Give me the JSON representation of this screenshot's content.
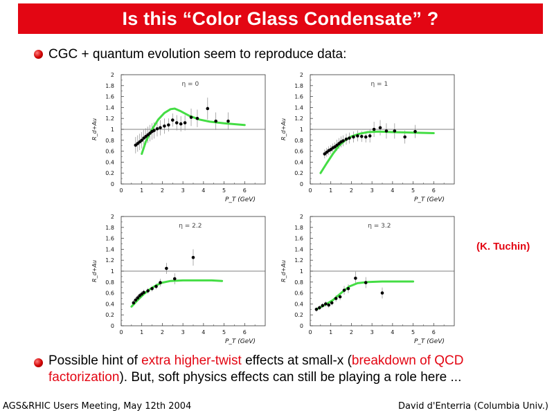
{
  "slide": {
    "title": "Is this “Color Glass Condensate” ?",
    "bullet1": "CGC + quantum evolution seem to reproduce data:",
    "bullet2_parts": [
      "Possible hint of ",
      "extra higher-twist",
      " effects at small-x (",
      "breakdown of QCD factorization",
      "). But, soft physics effects can still be playing a role here ..."
    ],
    "citation": "(K. Tuchin)",
    "footer_left": "AGS&RHIC Users Meeting, May 12th 2004",
    "footer_right": "David d'Enterria (Columbia Univ.)",
    "colors": {
      "title_bg": "#e30613",
      "highlight": "#e30613",
      "theory_curve": "#44dd44"
    }
  },
  "chart_data": [
    {
      "type": "scatter",
      "title": "η = 0",
      "xlabel": "P_T (GeV)",
      "ylabel": "R_d+Au",
      "xlim": [
        0,
        7
      ],
      "ylim": [
        0,
        2
      ],
      "xticks": [
        0,
        1,
        2,
        3,
        4,
        5,
        6
      ],
      "yticks": [
        0,
        0.2,
        0.4,
        0.6,
        0.8,
        1,
        1.2,
        1.4,
        1.6,
        1.8,
        2
      ],
      "reference_line": 1,
      "points": [
        [
          0.7,
          0.71
        ],
        [
          0.8,
          0.74
        ],
        [
          0.9,
          0.77
        ],
        [
          1.0,
          0.8
        ],
        [
          1.1,
          0.84
        ],
        [
          1.2,
          0.87
        ],
        [
          1.3,
          0.9
        ],
        [
          1.4,
          0.93
        ],
        [
          1.5,
          0.96
        ],
        [
          1.6,
          0.98
        ],
        [
          1.75,
          1.01
        ],
        [
          1.9,
          1.03
        ],
        [
          2.1,
          1.06
        ],
        [
          2.3,
          1.08
        ],
        [
          2.5,
          1.17
        ],
        [
          2.7,
          1.12
        ],
        [
          2.9,
          1.1
        ],
        [
          3.1,
          1.12
        ],
        [
          3.4,
          1.22
        ],
        [
          3.7,
          1.2
        ],
        [
          4.2,
          1.38
        ],
        [
          4.6,
          1.15
        ],
        [
          5.2,
          1.15
        ]
      ],
      "errors": [
        0.15,
        0.15,
        0.15,
        0.15,
        0.15,
        0.15,
        0.15,
        0.15,
        0.15,
        0.15,
        0.14,
        0.14,
        0.14,
        0.12,
        0.12,
        0.14,
        0.14,
        0.14,
        0.16,
        0.16,
        0.2,
        0.16,
        0.16
      ],
      "theory_curve": [
        [
          1.0,
          0.55
        ],
        [
          1.2,
          0.78
        ],
        [
          1.5,
          1.0
        ],
        [
          1.8,
          1.18
        ],
        [
          2.1,
          1.3
        ],
        [
          2.4,
          1.37
        ],
        [
          2.6,
          1.38
        ],
        [
          2.9,
          1.33
        ],
        [
          3.3,
          1.25
        ],
        [
          3.8,
          1.18
        ],
        [
          4.3,
          1.14
        ],
        [
          5.0,
          1.11
        ],
        [
          6.0,
          1.08
        ]
      ]
    },
    {
      "type": "scatter",
      "title": "η = 1",
      "xlabel": "P_T (GeV)",
      "ylabel": "R_d+Au",
      "xlim": [
        0,
        7
      ],
      "ylim": [
        0,
        2
      ],
      "xticks": [
        0,
        1,
        2,
        3,
        4,
        5,
        6
      ],
      "yticks": [
        0,
        0.2,
        0.4,
        0.6,
        0.8,
        1,
        1.2,
        1.4,
        1.6,
        1.8,
        2
      ],
      "reference_line": 1,
      "points": [
        [
          0.7,
          0.55
        ],
        [
          0.8,
          0.58
        ],
        [
          0.9,
          0.61
        ],
        [
          1.0,
          0.63
        ],
        [
          1.1,
          0.66
        ],
        [
          1.2,
          0.68
        ],
        [
          1.3,
          0.71
        ],
        [
          1.4,
          0.74
        ],
        [
          1.5,
          0.77
        ],
        [
          1.6,
          0.79
        ],
        [
          1.75,
          0.82
        ],
        [
          1.9,
          0.84
        ],
        [
          2.1,
          0.86
        ],
        [
          2.3,
          0.88
        ],
        [
          2.5,
          0.87
        ],
        [
          2.7,
          0.86
        ],
        [
          2.9,
          0.88
        ],
        [
          3.1,
          1.0
        ],
        [
          3.4,
          1.03
        ],
        [
          3.7,
          0.97
        ],
        [
          4.1,
          0.97
        ],
        [
          4.6,
          0.86
        ],
        [
          5.1,
          0.96
        ]
      ],
      "errors": [
        0.08,
        0.08,
        0.08,
        0.08,
        0.08,
        0.08,
        0.1,
        0.1,
        0.1,
        0.1,
        0.1,
        0.1,
        0.1,
        0.1,
        0.1,
        0.1,
        0.12,
        0.14,
        0.14,
        0.14,
        0.14,
        0.12,
        0.12
      ],
      "theory_curve": [
        [
          0.5,
          0.2
        ],
        [
          0.8,
          0.38
        ],
        [
          1.1,
          0.55
        ],
        [
          1.4,
          0.7
        ],
        [
          1.7,
          0.8
        ],
        [
          2.0,
          0.87
        ],
        [
          2.4,
          0.92
        ],
        [
          2.8,
          0.95
        ],
        [
          3.3,
          0.96
        ],
        [
          4.0,
          0.95
        ],
        [
          5.0,
          0.94
        ],
        [
          6.0,
          0.93
        ]
      ]
    },
    {
      "type": "scatter",
      "title": "η = 2.2",
      "xlabel": "P_T (GeV)",
      "ylabel": "R_d+Au",
      "xlim": [
        0,
        7
      ],
      "ylim": [
        0,
        2
      ],
      "xticks": [
        0,
        1,
        2,
        3,
        4,
        5,
        6
      ],
      "yticks": [
        0,
        0.2,
        0.4,
        0.6,
        0.8,
        1,
        1.2,
        1.4,
        1.6,
        1.8,
        2
      ],
      "reference_line": 1,
      "points": [
        [
          0.6,
          0.42
        ],
        [
          0.7,
          0.47
        ],
        [
          0.8,
          0.51
        ],
        [
          0.9,
          0.55
        ],
        [
          1.0,
          0.58
        ],
        [
          1.1,
          0.61
        ],
        [
          1.3,
          0.64
        ],
        [
          1.5,
          0.68
        ],
        [
          1.7,
          0.72
        ],
        [
          1.9,
          0.79
        ],
        [
          2.2,
          1.05
        ],
        [
          2.6,
          0.86
        ],
        [
          3.5,
          1.25
        ]
      ],
      "errors": [
        0.05,
        0.05,
        0.05,
        0.05,
        0.05,
        0.05,
        0.05,
        0.05,
        0.05,
        0.07,
        0.1,
        0.1,
        0.15
      ],
      "theory_curve": [
        [
          0.5,
          0.35
        ],
        [
          0.8,
          0.47
        ],
        [
          1.1,
          0.58
        ],
        [
          1.4,
          0.67
        ],
        [
          1.7,
          0.74
        ],
        [
          2.0,
          0.79
        ],
        [
          2.4,
          0.82
        ],
        [
          3.0,
          0.83
        ],
        [
          3.7,
          0.83
        ],
        [
          4.4,
          0.83
        ],
        [
          4.9,
          0.82
        ]
      ]
    },
    {
      "type": "scatter",
      "title": "η = 3.2",
      "xlabel": "P_T (GeV)",
      "ylabel": "R_d+Au",
      "xlim": [
        0,
        7
      ],
      "ylim": [
        0,
        2
      ],
      "xticks": [
        0,
        1,
        2,
        3,
        4,
        5,
        6
      ],
      "yticks": [
        0,
        0.2,
        0.4,
        0.6,
        0.8,
        1,
        1.2,
        1.4,
        1.6,
        1.8,
        2
      ],
      "reference_line": 1,
      "points": [
        [
          0.3,
          0.3
        ],
        [
          0.45,
          0.33
        ],
        [
          0.6,
          0.37
        ],
        [
          0.75,
          0.4
        ],
        [
          0.9,
          0.38
        ],
        [
          1.05,
          0.42
        ],
        [
          1.25,
          0.5
        ],
        [
          1.45,
          0.53
        ],
        [
          1.65,
          0.65
        ],
        [
          1.85,
          0.68
        ],
        [
          2.2,
          0.87
        ],
        [
          2.7,
          0.79
        ],
        [
          3.5,
          0.6
        ]
      ],
      "errors": [
        0.04,
        0.04,
        0.04,
        0.05,
        0.05,
        0.05,
        0.06,
        0.06,
        0.08,
        0.08,
        0.12,
        0.1,
        0.1
      ],
      "theory_curve": [
        [
          0.3,
          0.3
        ],
        [
          0.7,
          0.38
        ],
        [
          1.1,
          0.47
        ],
        [
          1.5,
          0.6
        ],
        [
          1.9,
          0.72
        ],
        [
          2.3,
          0.78
        ],
        [
          2.8,
          0.8
        ],
        [
          3.5,
          0.81
        ],
        [
          4.2,
          0.81
        ],
        [
          5.0,
          0.81
        ]
      ]
    }
  ]
}
